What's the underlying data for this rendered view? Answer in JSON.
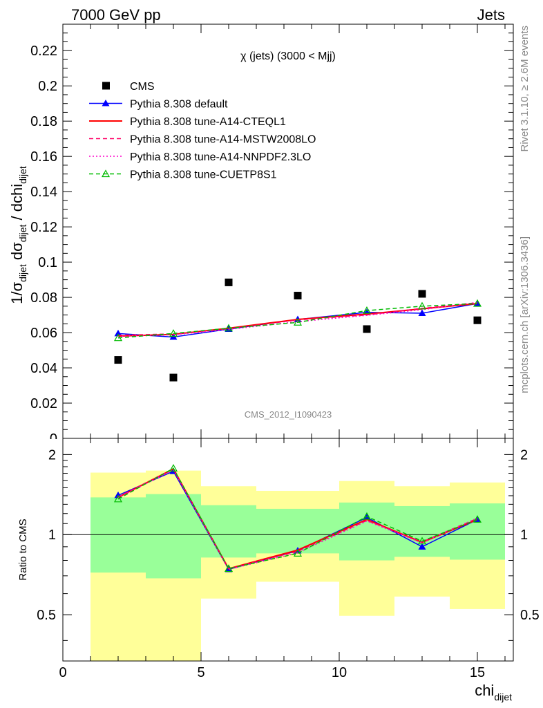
{
  "header": {
    "left": "7000 GeV pp",
    "right": "Jets"
  },
  "side_text": {
    "rivet": "Rivet 3.1.10, ≥ 2.6M events",
    "mcplots": "mcplots.cern.ch [arXiv:1306.3436]"
  },
  "chart_data": [
    {
      "type": "scatter",
      "title": "χ (jets) (3000 < Mjj)",
      "watermark": "CMS_2012_I1090423",
      "ylabel": "1/σ_dijet dσ_dijet / dchi_dijet",
      "ylim": [
        0,
        0.235
      ],
      "xlim": [
        0,
        16.3
      ],
      "yticks": [
        0.02,
        0.04,
        0.06,
        0.08,
        0.1,
        0.12,
        0.14,
        0.16,
        0.18,
        0.2,
        0.22
      ],
      "ytick_labels": [
        "0.02",
        "0.04",
        "0.06",
        "0.08",
        "0.1",
        "0.12",
        "0.14",
        "0.16",
        "0.18",
        "0.2",
        "0.22"
      ],
      "bottom_cut_label": "0",
      "x": [
        2,
        4,
        6,
        8.5,
        11,
        13,
        15
      ],
      "data": {
        "name": "CMS",
        "values": [
          0.0445,
          0.0345,
          0.0885,
          0.081,
          0.062,
          0.082,
          0.067
        ]
      },
      "series": [
        {
          "name": "Pythia 8.308 default",
          "color": "#0000ff",
          "style": "solid",
          "marker": "triangle-filled",
          "values": [
            0.0595,
            0.0575,
            0.062,
            0.0675,
            0.0715,
            0.071,
            0.0765
          ]
        },
        {
          "name": "Pythia 8.308 tune-A14-CTEQL1",
          "color": "#ff0000",
          "style": "solid",
          "marker": "none",
          "values": [
            0.058,
            0.059,
            0.0625,
            0.0675,
            0.0705,
            0.0735,
            0.0765
          ]
        },
        {
          "name": "Pythia 8.308 tune-A14-MSTW2008LO",
          "color": "#ff0066",
          "style": "dashed",
          "marker": "none",
          "values": [
            0.0585,
            0.0593,
            0.0622,
            0.0672,
            0.07,
            0.0738,
            0.077
          ]
        },
        {
          "name": "Pythia 8.308 tune-A14-NNPDF2.3LO",
          "color": "#ff00cc",
          "style": "dotted",
          "marker": "none",
          "values": [
            0.0578,
            0.0588,
            0.0618,
            0.0662,
            0.0698,
            0.073,
            0.0772
          ]
        },
        {
          "name": "Pythia 8.308 tune-CUETP8S1",
          "color": "#00bb00",
          "style": "dashed",
          "marker": "triangle-open",
          "values": [
            0.057,
            0.0595,
            0.0625,
            0.0658,
            0.0725,
            0.075,
            0.0765
          ]
        }
      ]
    },
    {
      "type": "line",
      "ylabel": "Ratio to CMS",
      "xlabel": "chi_dijet",
      "ylim": [
        0.335,
        2.3
      ],
      "xlim": [
        0,
        16.3
      ],
      "xticks": [
        0,
        5,
        10,
        15
      ],
      "xtick_labels": [
        "0",
        "5",
        "10",
        "15"
      ],
      "yticks": [
        0.5,
        1,
        2
      ],
      "ytick_labels": [
        "0.5",
        "1",
        "2"
      ],
      "reference_line": 1,
      "bins": [
        [
          1,
          3
        ],
        [
          3,
          5
        ],
        [
          5,
          7
        ],
        [
          7,
          10
        ],
        [
          10,
          12
        ],
        [
          12,
          14
        ],
        [
          14,
          16
        ]
      ],
      "band_outer": [
        [
          0.335,
          1.71
        ],
        [
          0.335,
          1.74
        ],
        [
          0.575,
          1.52
        ],
        [
          0.665,
          1.46
        ],
        [
          0.495,
          1.59
        ],
        [
          0.585,
          1.52
        ],
        [
          0.525,
          1.57
        ]
      ],
      "band_inner": [
        [
          0.72,
          1.38
        ],
        [
          0.685,
          1.42
        ],
        [
          0.82,
          1.29
        ],
        [
          0.85,
          1.25
        ],
        [
          0.8,
          1.32
        ],
        [
          0.825,
          1.28
        ],
        [
          0.805,
          1.31
        ]
      ],
      "band_outer_color": "#ffff99",
      "band_inner_color": "#99ff99",
      "x": [
        2,
        4,
        6,
        8.5,
        11,
        13,
        15
      ],
      "series": [
        {
          "name": "Pythia 8.308 default",
          "color": "#0000ff",
          "style": "solid",
          "marker": "triangle-filled",
          "values": [
            1.405,
            1.73,
            0.74,
            0.87,
            1.16,
            0.9,
            1.14
          ]
        },
        {
          "name": "Pythia 8.308 tune-A14-CTEQL1",
          "color": "#ff0000",
          "style": "solid",
          "marker": "none",
          "values": [
            1.38,
            1.765,
            0.745,
            0.875,
            1.14,
            0.935,
            1.14
          ]
        },
        {
          "name": "Pythia 8.308 tune-A14-MSTW2008LO",
          "color": "#ff0066",
          "style": "dashed",
          "marker": "none",
          "values": [
            1.385,
            1.77,
            0.745,
            0.865,
            1.13,
            0.94,
            1.15
          ]
        },
        {
          "name": "Pythia 8.308 tune-A14-NNPDF2.3LO",
          "color": "#ff00cc",
          "style": "dotted",
          "marker": "none",
          "values": [
            1.375,
            1.75,
            0.74,
            0.855,
            1.125,
            0.93,
            1.155
          ]
        },
        {
          "name": "Pythia 8.308 tune-CUETP8S1",
          "color": "#00bb00",
          "style": "dashed",
          "marker": "triangle-open",
          "values": [
            1.36,
            1.775,
            0.745,
            0.85,
            1.17,
            0.945,
            1.14
          ]
        }
      ]
    }
  ]
}
